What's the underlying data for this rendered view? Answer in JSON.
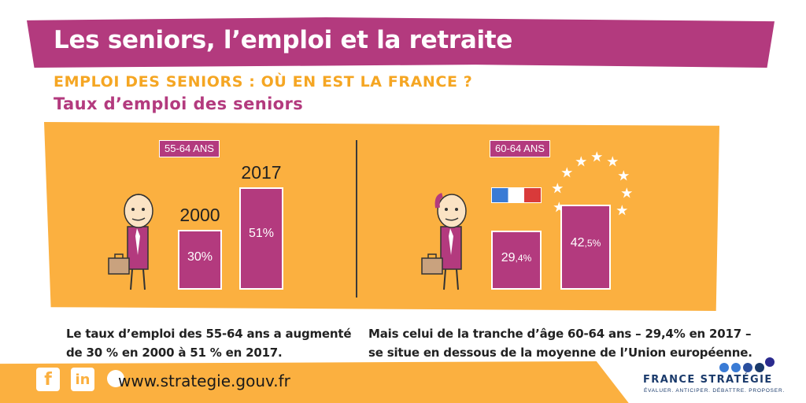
{
  "header": {
    "title": "Les seniors, l’emploi et la retraite",
    "subtitle": "EMPLOI DES SENIORS : OÙ EN EST LA FRANCE ?",
    "section": "Taux d’emploi des seniors"
  },
  "chart_data": [
    {
      "type": "bar",
      "title": "55-64 ANS",
      "categories": [
        "2000",
        "2017"
      ],
      "values": [
        30,
        51
      ],
      "value_labels": [
        "30%",
        "51%"
      ],
      "ylim": [
        0,
        55
      ]
    },
    {
      "type": "bar",
      "title": "60-64 ANS",
      "categories": [
        "France",
        "Union européenne"
      ],
      "values": [
        29.4,
        42.5
      ],
      "value_labels_main": [
        "29",
        "42"
      ],
      "value_labels_sub": [
        ",4%",
        ",5%"
      ],
      "ylim": [
        0,
        55
      ]
    }
  ],
  "captions": {
    "left_line1": "Le taux d’emploi des 55-64 ans a augmenté",
    "left_line2": "de 30 % en 2000 à 51 % en 2017.",
    "right_line1": "Mais celui de la tranche d’âge 60-64 ans – 29,4% en 2017 –",
    "right_line2": "se situe en dessous de la moyenne de l’Union européenne."
  },
  "footer": {
    "facebook_label": "f",
    "linkedin_label": "in",
    "website": "www.strategie.gouv.fr",
    "brand_name": "FRANCE STRATÉGIE",
    "brand_tagline": "ÉVALUER. ANTICIPER. DÉBATTRE. PROPOSER."
  },
  "colors": {
    "accent": "#b33a7e",
    "orange": "#fbb040",
    "brand_blue": "#1a3a6b"
  },
  "icons": [
    "senior-man-briefcase-icon",
    "french-flag-icon",
    "eu-stars-icon",
    "facebook-icon",
    "linkedin-icon"
  ]
}
